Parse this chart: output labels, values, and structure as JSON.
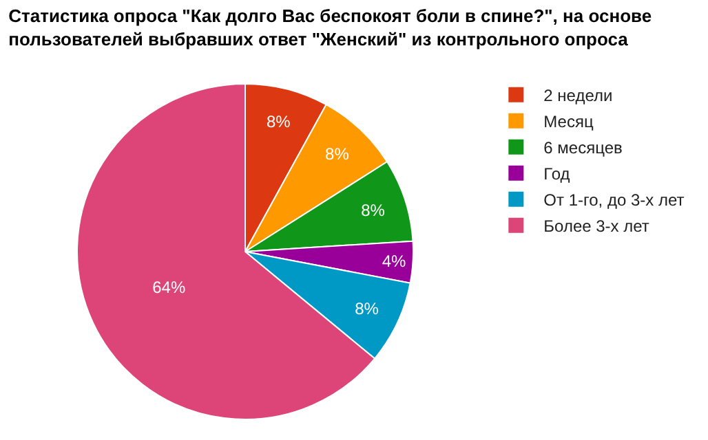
{
  "chart_data": {
    "type": "pie",
    "title": "Статистика опроса \"Как долго Вас беспокоят боли в спине?\", на основе пользователей выбравших ответ \"Женский\" из контрольного опроса",
    "categories": [
      "2 недели",
      "Месяц",
      "6 месяцев",
      "Год",
      "От 1-го, до 3-х лет",
      "Более 3-х лет"
    ],
    "values": [
      8,
      8,
      8,
      4,
      8,
      64
    ],
    "colors": [
      "#dc3912",
      "#ff9900",
      "#109618",
      "#990099",
      "#0099c6",
      "#dd4477"
    ],
    "value_labels": [
      "8%",
      "8%",
      "8%",
      "4%",
      "8%",
      "64%"
    ],
    "legend": "right"
  }
}
